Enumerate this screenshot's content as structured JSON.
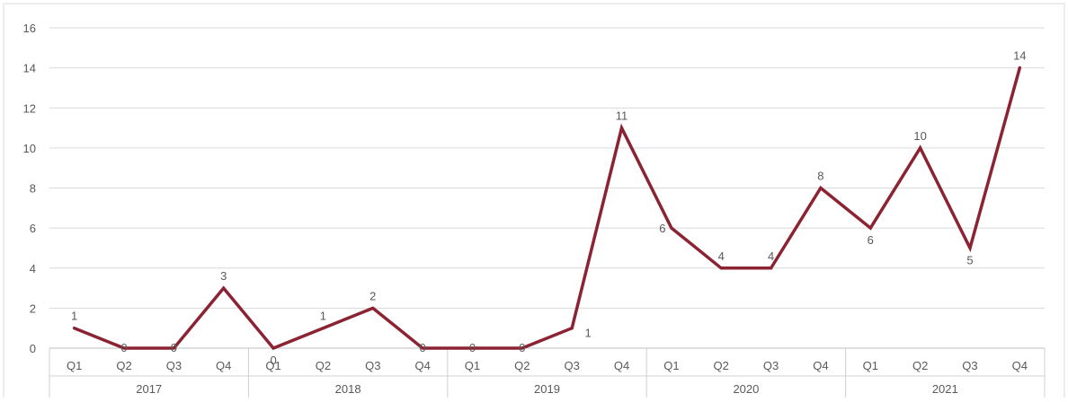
{
  "chart_data": {
    "type": "line",
    "title": "",
    "xlabel": "",
    "ylabel": "",
    "ylim": [
      0,
      16
    ],
    "yticks": [
      0,
      2,
      4,
      6,
      8,
      10,
      12,
      14,
      16
    ],
    "grid": true,
    "legend": "none",
    "line_color": "#8b2332",
    "groups": [
      {
        "label": "2017",
        "quarters": [
          "Q1",
          "Q2",
          "Q3",
          "Q4"
        ]
      },
      {
        "label": "2018",
        "quarters": [
          "Q1",
          "Q2",
          "Q3",
          "Q4"
        ]
      },
      {
        "label": "2019",
        "quarters": [
          "Q1",
          "Q2",
          "Q3",
          "Q4"
        ]
      },
      {
        "label": "2020",
        "quarters": [
          "Q1",
          "Q2",
          "Q3",
          "Q4"
        ]
      },
      {
        "label": "2021",
        "quarters": [
          "Q1",
          "Q2",
          "Q3",
          "Q4"
        ]
      }
    ],
    "values": [
      1,
      0,
      0,
      3,
      0,
      1,
      2,
      0,
      0,
      0,
      1,
      11,
      6,
      4,
      4,
      8,
      6,
      10,
      5,
      14
    ],
    "data_labels": [
      "1",
      "0",
      "0",
      "3",
      "0",
      "1",
      "2",
      "0",
      "0",
      "0",
      "1",
      "11",
      "6",
      "4",
      "4",
      "8",
      "6",
      "10",
      "5",
      "14"
    ]
  }
}
